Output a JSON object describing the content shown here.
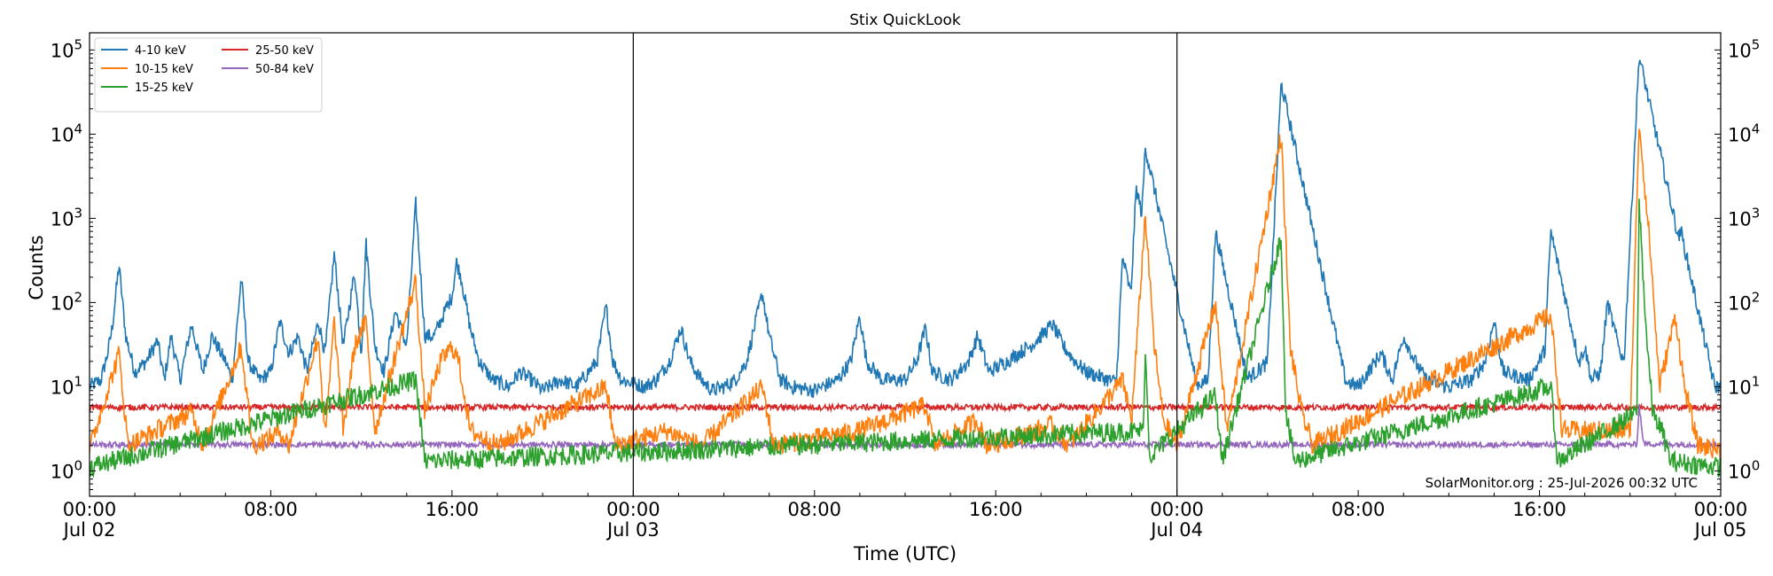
{
  "chart_data": {
    "type": "line",
    "title": "Stix QuickLook",
    "xlabel": "Time (UTC)",
    "ylabel": "Counts",
    "x_unit": "hours since Jul 02 00:00",
    "xlim": [
      0,
      72
    ],
    "ylim": [
      0.5,
      160000
    ],
    "yscale": "log",
    "y_ticks": [
      {
        "value": 1,
        "base": "10",
        "exp": "0"
      },
      {
        "value": 10,
        "base": "10",
        "exp": "1"
      },
      {
        "value": 100,
        "base": "10",
        "exp": "2"
      },
      {
        "value": 1000,
        "base": "10",
        "exp": "3"
      },
      {
        "value": 10000,
        "base": "10",
        "exp": "4"
      },
      {
        "value": 100000,
        "base": "10",
        "exp": "5"
      }
    ],
    "x_ticks": [
      {
        "value": 0,
        "line1": "00:00",
        "line2": "Jul 02"
      },
      {
        "value": 8,
        "line1": "08:00",
        "line2": ""
      },
      {
        "value": 16,
        "line1": "16:00",
        "line2": ""
      },
      {
        "value": 24,
        "line1": "00:00",
        "line2": "Jul 03"
      },
      {
        "value": 32,
        "line1": "08:00",
        "line2": ""
      },
      {
        "value": 40,
        "line1": "16:00",
        "line2": ""
      },
      {
        "value": 48,
        "line1": "00:00",
        "line2": "Jul 04"
      },
      {
        "value": 56,
        "line1": "08:00",
        "line2": ""
      },
      {
        "value": 64,
        "line1": "16:00",
        "line2": ""
      },
      {
        "value": 72,
        "line1": "00:00",
        "line2": "Jul 05"
      }
    ],
    "day_boundaries": [
      24,
      48
    ],
    "annotation": "SolarMonitor.org : 25-Jul-2026 00:32 UTC",
    "legend_position": "top-left",
    "grid": false,
    "series": [
      {
        "name": "4-10 keV",
        "color": "#1f77b4",
        "baseline": 9,
        "points": [
          [
            0,
            10
          ],
          [
            0.5,
            12
          ],
          [
            0.8,
            25
          ],
          [
            1.0,
            50
          ],
          [
            1.3,
            280
          ],
          [
            1.6,
            40
          ],
          [
            2.0,
            15
          ],
          [
            2.5,
            20
          ],
          [
            3.0,
            35
          ],
          [
            3.3,
            12
          ],
          [
            3.6,
            40
          ],
          [
            4.0,
            12
          ],
          [
            4.5,
            55
          ],
          [
            5.0,
            15
          ],
          [
            5.4,
            40
          ],
          [
            6.0,
            20
          ],
          [
            6.3,
            12
          ],
          [
            6.7,
            200
          ],
          [
            7.0,
            20
          ],
          [
            7.5,
            12
          ],
          [
            8.0,
            15
          ],
          [
            8.4,
            60
          ],
          [
            8.8,
            25
          ],
          [
            9.2,
            40
          ],
          [
            9.6,
            15
          ],
          [
            10.1,
            60
          ],
          [
            10.4,
            25
          ],
          [
            10.8,
            380
          ],
          [
            11.2,
            30
          ],
          [
            11.7,
            230
          ],
          [
            12.0,
            25
          ],
          [
            12.2,
            520
          ],
          [
            12.6,
            30
          ],
          [
            13.0,
            15
          ],
          [
            13.5,
            80
          ],
          [
            14.0,
            30
          ],
          [
            14.4,
            1500
          ],
          [
            14.8,
            40
          ],
          [
            15.2,
            40
          ],
          [
            15.7,
            80
          ],
          [
            16.0,
            120
          ],
          [
            16.2,
            300
          ],
          [
            16.4,
            200
          ],
          [
            16.8,
            50
          ],
          [
            17.2,
            20
          ],
          [
            17.8,
            12
          ],
          [
            18.5,
            10
          ],
          [
            19.0,
            15
          ],
          [
            19.5,
            12
          ],
          [
            20.0,
            9
          ],
          [
            20.8,
            12
          ],
          [
            21.5,
            10
          ],
          [
            22.4,
            20
          ],
          [
            22.8,
            90
          ],
          [
            23.1,
            20
          ],
          [
            23.5,
            12
          ],
          [
            24.5,
            10
          ],
          [
            25.0,
            12
          ],
          [
            25.6,
            20
          ],
          [
            26.1,
            50
          ],
          [
            26.5,
            20
          ],
          [
            27.0,
            12
          ],
          [
            27.5,
            9
          ],
          [
            28.0,
            10
          ],
          [
            28.5,
            12
          ],
          [
            29.0,
            20
          ],
          [
            29.7,
            130
          ],
          [
            30.0,
            40
          ],
          [
            30.5,
            12
          ],
          [
            31.0,
            10
          ],
          [
            32.0,
            9
          ],
          [
            33.0,
            12
          ],
          [
            33.6,
            20
          ],
          [
            34.0,
            70
          ],
          [
            34.3,
            20
          ],
          [
            35.0,
            12
          ],
          [
            36.0,
            12
          ],
          [
            36.5,
            20
          ],
          [
            36.9,
            50
          ],
          [
            37.2,
            15
          ],
          [
            38.0,
            12
          ],
          [
            38.8,
            20
          ],
          [
            39.2,
            40
          ],
          [
            39.7,
            15
          ],
          [
            40.5,
            20
          ],
          [
            41.0,
            25
          ],
          [
            41.5,
            30
          ],
          [
            42.0,
            40
          ],
          [
            42.5,
            55
          ],
          [
            43.0,
            30
          ],
          [
            43.5,
            20
          ],
          [
            44.0,
            15
          ],
          [
            45.0,
            12
          ],
          [
            46.0,
            10
          ],
          [
            47.0,
            12
          ],
          [
            47.5,
            10
          ],
          [
            48.0,
            9
          ],
          [
            48.5,
            10
          ],
          [
            49.5,
            12
          ],
          [
            50.0,
            9
          ],
          [
            51.0,
            12
          ],
          [
            51.5,
            15
          ],
          [
            52.5,
            25
          ],
          [
            53.5,
            15
          ],
          [
            54.0,
            12
          ],
          [
            54.8,
            20
          ],
          [
            55.3,
            12
          ],
          [
            56.0,
            10
          ],
          [
            57.0,
            25
          ],
          [
            57.5,
            12
          ],
          [
            58.0,
            40
          ],
          [
            58.5,
            20
          ],
          [
            59.0,
            12
          ],
          [
            60.0,
            10
          ],
          [
            61.0,
            12
          ],
          [
            61.6,
            20
          ],
          [
            62.0,
            60
          ],
          [
            62.4,
            15
          ],
          [
            63.5,
            12
          ],
          [
            64.0,
            20
          ],
          [
            64.5,
            40
          ],
          [
            65.0,
            15
          ],
          [
            65.5,
            12
          ],
          [
            66.0,
            30
          ],
          [
            66.3,
            12
          ],
          [
            66.7,
            15
          ],
          [
            67.0,
            100
          ],
          [
            67.5,
            30
          ],
          [
            68.0,
            12
          ],
          [
            68.8,
            40
          ],
          [
            69.3,
            15
          ],
          [
            69.6,
            60
          ],
          [
            70.0,
            30
          ],
          [
            70.5,
            12
          ],
          [
            71.0,
            9
          ],
          [
            71.5,
            10
          ],
          [
            72,
            10
          ]
        ],
        "flares": [
          [
            45.6,
            350
          ],
          [
            46.2,
            2300
          ],
          [
            46.6,
            7000
          ],
          [
            47.2,
            70
          ],
          [
            49.7,
            700
          ],
          [
            52.6,
            40000
          ],
          [
            53.5,
            60
          ],
          [
            64.5,
            700
          ],
          [
            68.4,
            85000
          ],
          [
            69.4,
            3000
          ],
          [
            70.2,
            800
          ]
        ]
      },
      {
        "name": "10-15 keV",
        "color": "#ff7f0e",
        "baseline": 1.7,
        "points": [
          [
            0,
            1.8
          ],
          [
            1.3,
            25
          ],
          [
            1.7,
            2
          ],
          [
            4.5,
            5
          ],
          [
            5.0,
            2
          ],
          [
            6.7,
            30
          ],
          [
            7.2,
            2
          ],
          [
            8.0,
            2.5
          ],
          [
            8.4,
            3
          ],
          [
            8.8,
            2
          ],
          [
            10.1,
            40
          ],
          [
            10.4,
            2.5
          ],
          [
            10.8,
            60
          ],
          [
            11.2,
            3
          ],
          [
            11.7,
            30
          ],
          [
            12.2,
            60
          ],
          [
            12.6,
            3
          ],
          [
            14.4,
            180
          ],
          [
            14.8,
            5
          ],
          [
            15.5,
            20
          ],
          [
            16.0,
            30
          ],
          [
            16.3,
            20
          ],
          [
            16.8,
            3
          ],
          [
            18.0,
            2
          ],
          [
            22.8,
            10
          ],
          [
            23.2,
            2
          ],
          [
            25.5,
            3
          ],
          [
            27.0,
            2
          ],
          [
            29.7,
            10
          ],
          [
            30.2,
            2
          ],
          [
            34.0,
            3
          ],
          [
            36.9,
            6
          ],
          [
            37.3,
            2
          ],
          [
            39.2,
            4
          ],
          [
            39.6,
            2
          ],
          [
            41.8,
            3
          ],
          [
            42.5,
            3.5
          ],
          [
            43.2,
            2
          ],
          [
            45.6,
            12
          ],
          [
            46.0,
            4
          ],
          [
            46.6,
            1100
          ],
          [
            47.0,
            30
          ],
          [
            47.4,
            4
          ],
          [
            48.0,
            2
          ],
          [
            49.7,
            100
          ],
          [
            50.2,
            3
          ],
          [
            52.6,
            10000
          ],
          [
            53.0,
            30
          ],
          [
            53.5,
            5
          ],
          [
            54.0,
            2
          ],
          [
            64.5,
            70
          ],
          [
            65.0,
            3
          ],
          [
            68.0,
            3
          ],
          [
            68.4,
            14000
          ],
          [
            68.9,
            400
          ],
          [
            69.3,
            10
          ],
          [
            70.0,
            70
          ],
          [
            70.4,
            10
          ],
          [
            71.0,
            2
          ],
          [
            72,
            1.8
          ]
        ]
      },
      {
        "name": "15-25 keV",
        "color": "#2ca02c",
        "baseline": 1.15,
        "points": [
          [
            0,
            1.1
          ],
          [
            14.4,
            12
          ],
          [
            14.8,
            1.3
          ],
          [
            46.5,
            3
          ],
          [
            46.6,
            25
          ],
          [
            46.8,
            1.5
          ],
          [
            49.7,
            8
          ],
          [
            50.0,
            1.3
          ],
          [
            52.6,
            600
          ],
          [
            52.8,
            5
          ],
          [
            53.2,
            1.3
          ],
          [
            64.5,
            10
          ],
          [
            64.8,
            1.3
          ],
          [
            68.3,
            5
          ],
          [
            68.4,
            1600
          ],
          [
            68.7,
            50
          ],
          [
            69.0,
            5
          ],
          [
            69.4,
            3
          ],
          [
            69.8,
            1.3
          ],
          [
            72,
            1.1
          ]
        ]
      },
      {
        "name": "25-50 keV",
        "color": "#d62728",
        "baseline": 5.7,
        "points": [
          [
            0,
            5.7
          ],
          [
            72,
            5.7
          ]
        ]
      },
      {
        "name": "50-84 keV",
        "color": "#9467bd",
        "baseline": 2.05,
        "points": [
          [
            0,
            2.05
          ],
          [
            68.3,
            2.05
          ],
          [
            68.4,
            6
          ],
          [
            68.6,
            2.1
          ],
          [
            72,
            2.05
          ]
        ]
      }
    ]
  }
}
